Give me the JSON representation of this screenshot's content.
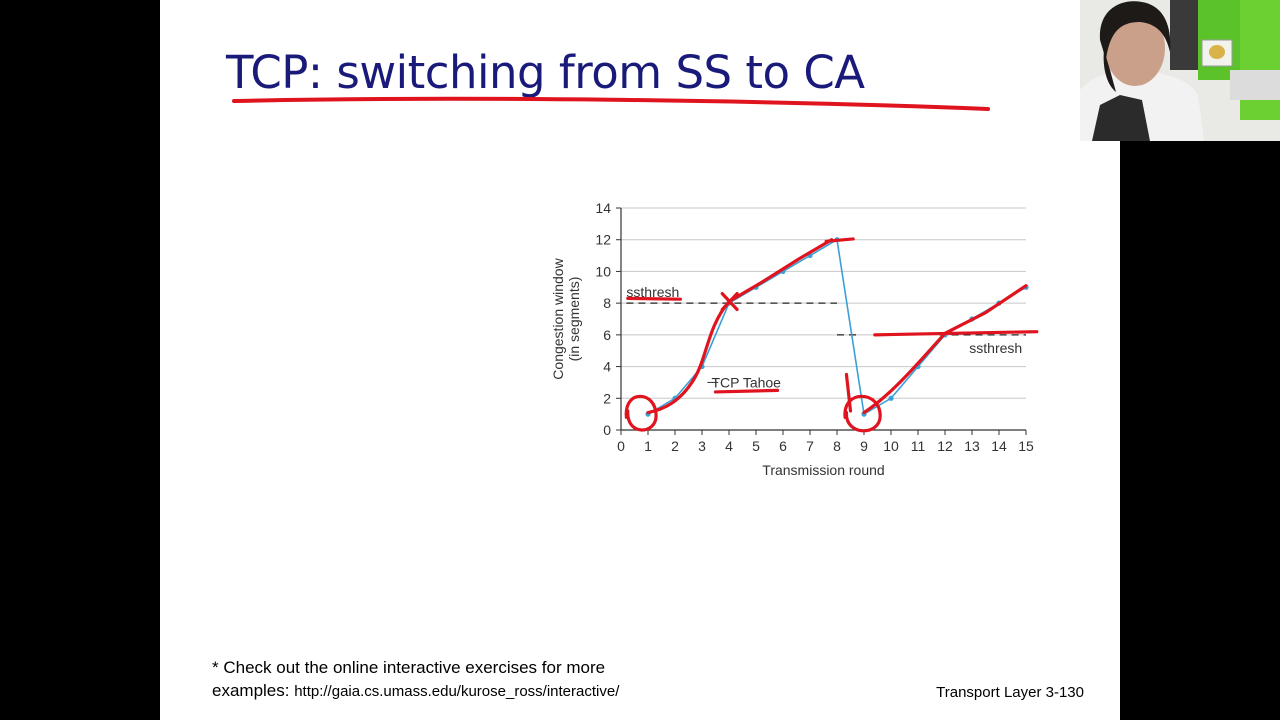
{
  "slide": {
    "title": "TCP: switching from SS to CA",
    "footnote_line1": "* Check out the online interactive exercises for more",
    "footnote_line2_prefix": "examples: ",
    "footnote_url": "http://gaia.cs.umass.edu/kurose_ross/interactive/",
    "page_label": "Transport Layer 3-130"
  },
  "colors": {
    "title": "#1a1a7a",
    "series_line": "#3aa0d8",
    "annotation_ink": "#e0141e",
    "grid": "#c8c8c8"
  },
  "chart_data": {
    "type": "line",
    "xlabel": "Transmission round",
    "ylabel": "Congestion window",
    "ylabel2": "(in segments)",
    "xlim": [
      0,
      15
    ],
    "ylim": [
      0,
      14
    ],
    "x_ticks": [
      0,
      1,
      2,
      3,
      4,
      5,
      6,
      7,
      8,
      9,
      10,
      11,
      12,
      13,
      14,
      15
    ],
    "y_ticks": [
      0,
      2,
      4,
      6,
      8,
      10,
      12,
      14
    ],
    "grid": "horizontal",
    "series": [
      {
        "name": "TCP Tahoe",
        "x": [
          1,
          2,
          3,
          4,
          5,
          6,
          7,
          8,
          9,
          10,
          11,
          12,
          13,
          14,
          15
        ],
        "y": [
          1,
          2,
          4,
          8,
          9,
          10,
          11,
          12,
          1,
          2,
          4,
          6,
          7,
          8,
          9
        ]
      }
    ],
    "thresholds": [
      {
        "label": "ssthresh",
        "value": 8,
        "x_range": [
          0,
          8
        ]
      },
      {
        "label": "ssthresh",
        "value": 6,
        "x_range": [
          8,
          15
        ]
      }
    ]
  }
}
